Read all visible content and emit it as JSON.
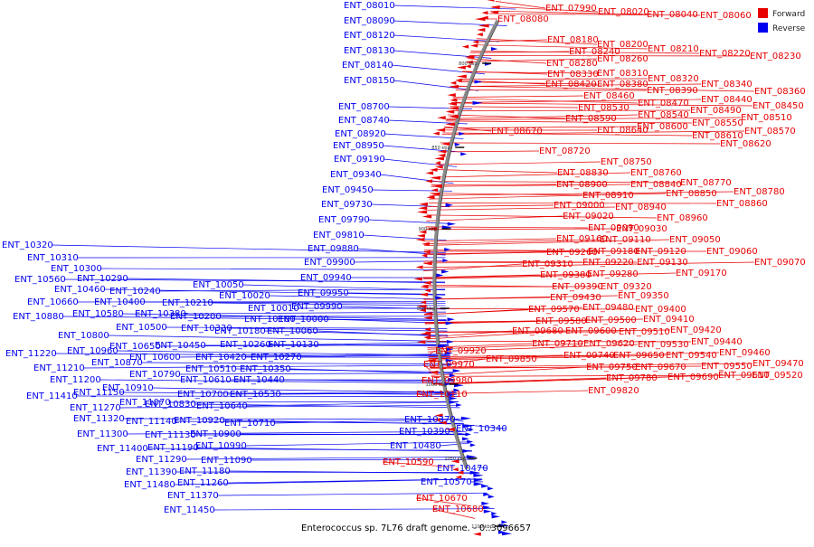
{
  "caption": "Enterococcus sp. 7L76 draft genome. - 0..3096657",
  "legend": {
    "forward": {
      "label": "Forward",
      "color": "#e80000"
    },
    "reverse": {
      "label": "Reverse",
      "color": "#0000f0"
    }
  },
  "ticks": [
    "800 kbp",
    "850 kbp",
    "900 kbp",
    "950 kbp",
    "1000 kbp",
    "1050 kbp",
    "1100 kbp"
  ],
  "reverse_genes": [
    "ENT_08010",
    "ENT_08090",
    "ENT_08120",
    "ENT_08130",
    "ENT_08140",
    "ENT_08150",
    "ENT_08700",
    "ENT_08740",
    "ENT_08920",
    "ENT_08950",
    "ENT_09190",
    "ENT_09340",
    "ENT_09450",
    "ENT_09730",
    "ENT_09790",
    "ENT_09810",
    "ENT_09880",
    "ENT_09900",
    "ENT_09940",
    "ENT_09950",
    "ENT_09990",
    "ENT_10000",
    "ENT_10060",
    "ENT_10130",
    "ENT_10010",
    "ENT_10100",
    "ENT_10020",
    "ENT_10050",
    "ENT_10320",
    "ENT_10310",
    "ENT_10300",
    "ENT_10560",
    "ENT_10290",
    "ENT_10460",
    "ENT_10240",
    "ENT_10660",
    "ENT_10400",
    "ENT_10210",
    "ENT_10880",
    "ENT_10580",
    "ENT_10380",
    "ENT_10200",
    "ENT_10500",
    "ENT_10330",
    "ENT_10180",
    "ENT_10800",
    "ENT_10650",
    "ENT_10450",
    "ENT_10260",
    "ENT_11220",
    "ENT_10960",
    "ENT_10600",
    "ENT_10420",
    "ENT_10270",
    "ENT_10870",
    "ENT_10510",
    "ENT_10350",
    "ENT_11210",
    "ENT_10790",
    "ENT_10610",
    "ENT_10440",
    "ENT_11200",
    "ENT_10910",
    "ENT_10700",
    "ENT_10530",
    "ENT_11410",
    "ENT_11150",
    "ENT_10830",
    "ENT_10640",
    "ENT_11270",
    "ENT_11070",
    "ENT_11320",
    "ENT_11140",
    "ENT_10920",
    "ENT_10710",
    "ENT_11300",
    "ENT_11130",
    "ENT_10900",
    "ENT_11400",
    "ENT_11190",
    "ENT_10990",
    "ENT_11290",
    "ENT_11090",
    "ENT_11390",
    "ENT_11180",
    "ENT_11480",
    "ENT_11260",
    "ENT_11370",
    "ENT_11450",
    "ENT_10370",
    "ENT_10390",
    "ENT_10340",
    "ENT_10480",
    "ENT_10470",
    "ENT_10570"
  ],
  "forward_genes": [
    "ENT_07990",
    "ENT_08020",
    "ENT_08040",
    "ENT_08060",
    "ENT_08080",
    "ENT_08180",
    "ENT_08200",
    "ENT_08210",
    "ENT_08220",
    "ENT_08230",
    "ENT_08240",
    "ENT_08260",
    "ENT_08280",
    "ENT_08330",
    "ENT_08310",
    "ENT_08320",
    "ENT_08340",
    "ENT_08360",
    "ENT_08420",
    "ENT_08380",
    "ENT_08390",
    "ENT_08460",
    "ENT_08440",
    "ENT_08470",
    "ENT_08450",
    "ENT_08530",
    "ENT_08490",
    "ENT_08510",
    "ENT_08540",
    "ENT_08590",
    "ENT_08550",
    "ENT_08640",
    "ENT_08600",
    "ENT_08570",
    "ENT_08670",
    "ENT_08610",
    "ENT_08620",
    "ENT_08720",
    "ENT_08750",
    "ENT_08760",
    "ENT_08830",
    "ENT_08770",
    "ENT_08900",
    "ENT_08840",
    "ENT_08780",
    "ENT_08850",
    "ENT_08910",
    "ENT_08860",
    "ENT_09000",
    "ENT_08940",
    "ENT_09020",
    "ENT_08960",
    "ENT_09090",
    "ENT_09030",
    "ENT_09160",
    "ENT_09110",
    "ENT_09050",
    "ENT_09120",
    "ENT_09060",
    "ENT_09260",
    "ENT_09180",
    "ENT_09070",
    "ENT_09310",
    "ENT_09220",
    "ENT_09130",
    "ENT_09380",
    "ENT_09280",
    "ENT_09170",
    "ENT_09390",
    "ENT_09320",
    "ENT_09430",
    "ENT_09350",
    "ENT_09570",
    "ENT_09480",
    "ENT_09400",
    "ENT_09580",
    "ENT_09500",
    "ENT_09410",
    "ENT_09680",
    "ENT_09600",
    "ENT_09510",
    "ENT_09420",
    "ENT_09710",
    "ENT_09620",
    "ENT_09530",
    "ENT_09440",
    "ENT_09740",
    "ENT_09650",
    "ENT_09540",
    "ENT_09460",
    "ENT_09750",
    "ENT_09670",
    "ENT_09550",
    "ENT_09470",
    "ENT_09780",
    "ENT_09690",
    "ENT_09610",
    "ENT_09520",
    "ENT_09820",
    "ENT_09920",
    "ENT_09970",
    "ENT_09850",
    "ENT_09980",
    "ENT_10110",
    "ENT_10590",
    "ENT_10670",
    "ENT_10680"
  ]
}
